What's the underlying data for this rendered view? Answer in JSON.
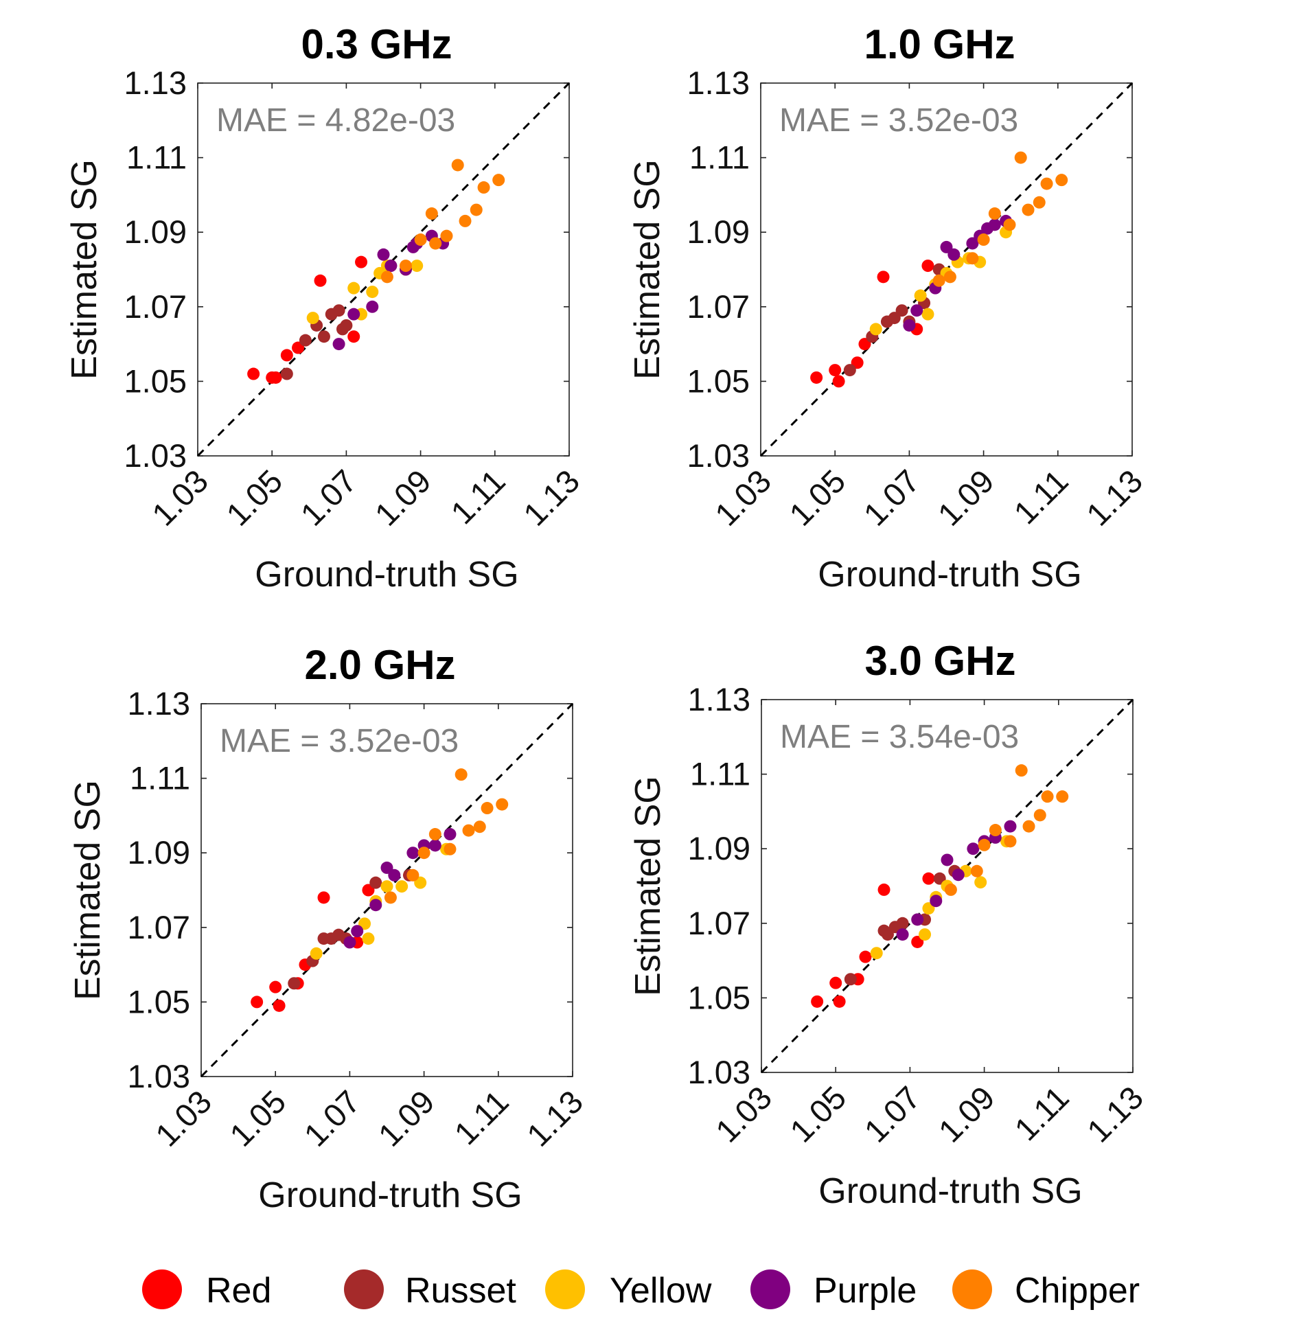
{
  "legend": [
    {
      "label": "Red",
      "color": "#ff0000"
    },
    {
      "label": "Russet",
      "color": "#a52a2a"
    },
    {
      "label": "Yellow",
      "color": "#ffc000"
    },
    {
      "label": "Purple",
      "color": "#800080"
    },
    {
      "label": "Chipper",
      "color": "#ff8000"
    }
  ],
  "chart_data": [
    {
      "type": "scatter",
      "title": "0.3 GHz",
      "xlabel": "Ground-truth SG",
      "ylabel": "Estimated SG",
      "annotation": "MAE = 4.82e-03",
      "xlim": [
        1.03,
        1.13
      ],
      "ylim": [
        1.03,
        1.13
      ],
      "xticks": [
        "1.03",
        "1.05",
        "1.07",
        "1.09",
        "1.11",
        "1.13"
      ],
      "yticks": [
        "1.03",
        "1.05",
        "1.07",
        "1.09",
        "1.11",
        "1.13"
      ],
      "reference_line": "y = x (dashed)",
      "series": [
        {
          "name": "Red",
          "color": "#ff0000",
          "points": [
            [
              1.045,
              1.052
            ],
            [
              1.05,
              1.051
            ],
            [
              1.051,
              1.051
            ],
            [
              1.054,
              1.057
            ],
            [
              1.063,
              1.077
            ],
            [
              1.072,
              1.062
            ],
            [
              1.074,
              1.082
            ],
            [
              1.057,
              1.059
            ]
          ]
        },
        {
          "name": "Russet",
          "color": "#a52a2a",
          "points": [
            [
              1.054,
              1.052
            ],
            [
              1.059,
              1.061
            ],
            [
              1.062,
              1.065
            ],
            [
              1.064,
              1.062
            ],
            [
              1.066,
              1.068
            ],
            [
              1.068,
              1.069
            ],
            [
              1.069,
              1.064
            ],
            [
              1.07,
              1.065
            ],
            [
              1.082,
              1.081
            ]
          ]
        },
        {
          "name": "Yellow",
          "color": "#ffc000",
          "points": [
            [
              1.061,
              1.067
            ],
            [
              1.072,
              1.075
            ],
            [
              1.074,
              1.068
            ],
            [
              1.077,
              1.074
            ],
            [
              1.079,
              1.079
            ],
            [
              1.081,
              1.081
            ],
            [
              1.086,
              1.08
            ],
            [
              1.089,
              1.081
            ],
            [
              1.094,
              1.087
            ]
          ]
        },
        {
          "name": "Purple",
          "color": "#800080",
          "points": [
            [
              1.068,
              1.06
            ],
            [
              1.072,
              1.068
            ],
            [
              1.077,
              1.07
            ],
            [
              1.08,
              1.084
            ],
            [
              1.082,
              1.081
            ],
            [
              1.086,
              1.08
            ],
            [
              1.088,
              1.086
            ],
            [
              1.089,
              1.087
            ],
            [
              1.093,
              1.089
            ],
            [
              1.096,
              1.087
            ]
          ]
        },
        {
          "name": "Chipper",
          "color": "#ff8000",
          "points": [
            [
              1.081,
              1.078
            ],
            [
              1.086,
              1.081
            ],
            [
              1.09,
              1.088
            ],
            [
              1.093,
              1.095
            ],
            [
              1.097,
              1.089
            ],
            [
              1.1,
              1.108
            ],
            [
              1.102,
              1.093
            ],
            [
              1.105,
              1.096
            ],
            [
              1.107,
              1.102
            ],
            [
              1.111,
              1.104
            ],
            [
              1.094,
              1.087
            ]
          ]
        }
      ]
    },
    {
      "type": "scatter",
      "title": "1.0 GHz",
      "xlabel": "Ground-truth SG",
      "ylabel": "Estimated SG",
      "annotation": "MAE = 3.52e-03",
      "xlim": [
        1.03,
        1.13
      ],
      "ylim": [
        1.03,
        1.13
      ],
      "xticks": [
        "1.03",
        "1.05",
        "1.07",
        "1.09",
        "1.11",
        "1.13"
      ],
      "yticks": [
        "1.03",
        "1.05",
        "1.07",
        "1.09",
        "1.11",
        "1.13"
      ],
      "reference_line": "y = x (dashed)",
      "series": [
        {
          "name": "Red",
          "color": "#ff0000",
          "points": [
            [
              1.045,
              1.051
            ],
            [
              1.05,
              1.053
            ],
            [
              1.051,
              1.05
            ],
            [
              1.056,
              1.055
            ],
            [
              1.058,
              1.06
            ],
            [
              1.063,
              1.078
            ],
            [
              1.072,
              1.064
            ],
            [
              1.075,
              1.081
            ]
          ]
        },
        {
          "name": "Russet",
          "color": "#a52a2a",
          "points": [
            [
              1.054,
              1.053
            ],
            [
              1.06,
              1.062
            ],
            [
              1.064,
              1.066
            ],
            [
              1.066,
              1.067
            ],
            [
              1.068,
              1.069
            ],
            [
              1.07,
              1.066
            ],
            [
              1.074,
              1.071
            ],
            [
              1.078,
              1.08
            ]
          ]
        },
        {
          "name": "Yellow",
          "color": "#ffc000",
          "points": [
            [
              1.061,
              1.064
            ],
            [
              1.073,
              1.073
            ],
            [
              1.075,
              1.068
            ],
            [
              1.077,
              1.076
            ],
            [
              1.08,
              1.079
            ],
            [
              1.083,
              1.082
            ],
            [
              1.086,
              1.083
            ],
            [
              1.089,
              1.082
            ],
            [
              1.096,
              1.09
            ]
          ]
        },
        {
          "name": "Purple",
          "color": "#800080",
          "points": [
            [
              1.07,
              1.065
            ],
            [
              1.072,
              1.069
            ],
            [
              1.077,
              1.075
            ],
            [
              1.08,
              1.086
            ],
            [
              1.082,
              1.084
            ],
            [
              1.087,
              1.087
            ],
            [
              1.089,
              1.089
            ],
            [
              1.091,
              1.091
            ],
            [
              1.093,
              1.092
            ],
            [
              1.096,
              1.093
            ]
          ]
        },
        {
          "name": "Chipper",
          "color": "#ff8000",
          "points": [
            [
              1.081,
              1.078
            ],
            [
              1.087,
              1.083
            ],
            [
              1.09,
              1.088
            ],
            [
              1.093,
              1.095
            ],
            [
              1.097,
              1.092
            ],
            [
              1.1,
              1.11
            ],
            [
              1.102,
              1.096
            ],
            [
              1.105,
              1.098
            ],
            [
              1.107,
              1.103
            ],
            [
              1.111,
              1.104
            ],
            [
              1.078,
              1.077
            ]
          ]
        }
      ]
    },
    {
      "type": "scatter",
      "title": "2.0 GHz",
      "xlabel": "Ground-truth SG",
      "ylabel": "Estimated SG",
      "annotation": "MAE = 3.52e-03",
      "xlim": [
        1.03,
        1.13
      ],
      "ylim": [
        1.03,
        1.13
      ],
      "xticks": [
        "1.03",
        "1.05",
        "1.07",
        "1.09",
        "1.11",
        "1.13"
      ],
      "yticks": [
        "1.03",
        "1.05",
        "1.07",
        "1.09",
        "1.11",
        "1.13"
      ],
      "reference_line": "y = x (dashed)",
      "series": [
        {
          "name": "Red",
          "color": "#ff0000",
          "points": [
            [
              1.045,
              1.05
            ],
            [
              1.05,
              1.054
            ],
            [
              1.051,
              1.049
            ],
            [
              1.056,
              1.055
            ],
            [
              1.058,
              1.06
            ],
            [
              1.063,
              1.078
            ],
            [
              1.072,
              1.066
            ],
            [
              1.075,
              1.08
            ]
          ]
        },
        {
          "name": "Russet",
          "color": "#a52a2a",
          "points": [
            [
              1.055,
              1.055
            ],
            [
              1.06,
              1.061
            ],
            [
              1.063,
              1.067
            ],
            [
              1.065,
              1.067
            ],
            [
              1.067,
              1.068
            ],
            [
              1.069,
              1.067
            ],
            [
              1.077,
              1.082
            ],
            [
              1.086,
              1.084
            ]
          ]
        },
        {
          "name": "Yellow",
          "color": "#ffc000",
          "points": [
            [
              1.061,
              1.063
            ],
            [
              1.074,
              1.071
            ],
            [
              1.075,
              1.067
            ],
            [
              1.077,
              1.077
            ],
            [
              1.08,
              1.081
            ],
            [
              1.084,
              1.081
            ],
            [
              1.089,
              1.082
            ],
            [
              1.096,
              1.091
            ]
          ]
        },
        {
          "name": "Purple",
          "color": "#800080",
          "points": [
            [
              1.07,
              1.066
            ],
            [
              1.072,
              1.069
            ],
            [
              1.077,
              1.076
            ],
            [
              1.08,
              1.086
            ],
            [
              1.082,
              1.084
            ],
            [
              1.087,
              1.09
            ],
            [
              1.09,
              1.092
            ],
            [
              1.093,
              1.092
            ],
            [
              1.097,
              1.095
            ]
          ]
        },
        {
          "name": "Chipper",
          "color": "#ff8000",
          "points": [
            [
              1.081,
              1.078
            ],
            [
              1.087,
              1.084
            ],
            [
              1.09,
              1.09
            ],
            [
              1.093,
              1.095
            ],
            [
              1.097,
              1.091
            ],
            [
              1.1,
              1.111
            ],
            [
              1.102,
              1.096
            ],
            [
              1.105,
              1.097
            ],
            [
              1.107,
              1.102
            ],
            [
              1.111,
              1.103
            ]
          ]
        }
      ]
    },
    {
      "type": "scatter",
      "title": "3.0 GHz",
      "xlabel": "Ground-truth SG",
      "ylabel": "Estimated SG",
      "annotation": "MAE = 3.54e-03",
      "xlim": [
        1.03,
        1.13
      ],
      "ylim": [
        1.03,
        1.13
      ],
      "xticks": [
        "1.03",
        "1.05",
        "1.07",
        "1.09",
        "1.11",
        "1.13"
      ],
      "yticks": [
        "1.03",
        "1.05",
        "1.07",
        "1.09",
        "1.11",
        "1.13"
      ],
      "reference_line": "y = x (dashed)",
      "series": [
        {
          "name": "Red",
          "color": "#ff0000",
          "points": [
            [
              1.045,
              1.049
            ],
            [
              1.05,
              1.054
            ],
            [
              1.051,
              1.049
            ],
            [
              1.056,
              1.055
            ],
            [
              1.058,
              1.061
            ],
            [
              1.063,
              1.079
            ],
            [
              1.072,
              1.065
            ],
            [
              1.075,
              1.082
            ]
          ]
        },
        {
          "name": "Russet",
          "color": "#a52a2a",
          "points": [
            [
              1.054,
              1.055
            ],
            [
              1.063,
              1.068
            ],
            [
              1.064,
              1.067
            ],
            [
              1.066,
              1.069
            ],
            [
              1.068,
              1.07
            ],
            [
              1.074,
              1.071
            ],
            [
              1.078,
              1.082
            ],
            [
              1.082,
              1.084
            ]
          ]
        },
        {
          "name": "Yellow",
          "color": "#ffc000",
          "points": [
            [
              1.061,
              1.062
            ],
            [
              1.074,
              1.067
            ],
            [
              1.075,
              1.074
            ],
            [
              1.077,
              1.077
            ],
            [
              1.08,
              1.08
            ],
            [
              1.085,
              1.084
            ],
            [
              1.089,
              1.081
            ],
            [
              1.096,
              1.092
            ]
          ]
        },
        {
          "name": "Purple",
          "color": "#800080",
          "points": [
            [
              1.068,
              1.067
            ],
            [
              1.072,
              1.071
            ],
            [
              1.077,
              1.076
            ],
            [
              1.08,
              1.087
            ],
            [
              1.083,
              1.083
            ],
            [
              1.087,
              1.09
            ],
            [
              1.09,
              1.092
            ],
            [
              1.093,
              1.093
            ],
            [
              1.097,
              1.096
            ]
          ]
        },
        {
          "name": "Chipper",
          "color": "#ff8000",
          "points": [
            [
              1.081,
              1.079
            ],
            [
              1.088,
              1.084
            ],
            [
              1.09,
              1.091
            ],
            [
              1.093,
              1.095
            ],
            [
              1.097,
              1.092
            ],
            [
              1.1,
              1.111
            ],
            [
              1.102,
              1.096
            ],
            [
              1.105,
              1.099
            ],
            [
              1.107,
              1.104
            ],
            [
              1.111,
              1.104
            ]
          ]
        }
      ]
    }
  ]
}
